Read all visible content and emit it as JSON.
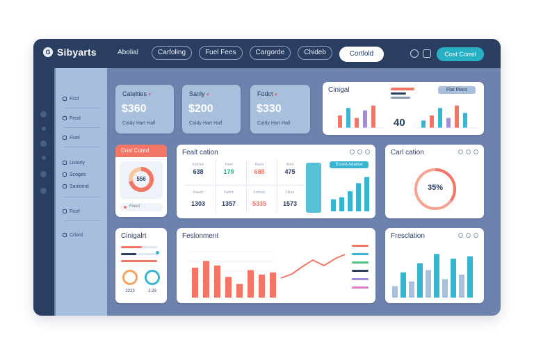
{
  "app": {
    "name": "Sibyarts",
    "logo_letter": "G"
  },
  "nav": {
    "items": [
      "Abolial",
      "Carfoling",
      "Fuel Fees",
      "Cargorde",
      "Chideb"
    ]
  },
  "header": {
    "cta_label": "Cortlold",
    "accent_label": "Cost Correl"
  },
  "sidebar": {
    "items": [
      {
        "label": "Ficd",
        "icon": "gauge-icon"
      },
      {
        "label": "Feod",
        "icon": "list-icon"
      },
      {
        "label": "Ficel",
        "icon": "box-icon"
      },
      {
        "label": "Lictorly",
        "icon": "file-icon"
      },
      {
        "label": "Scoges",
        "icon": "chart-icon"
      },
      {
        "label": "Sanlomd",
        "icon": "folder-icon"
      },
      {
        "label": "Ficel",
        "icon": "box-icon"
      },
      {
        "label": "Crlord",
        "icon": "settings-icon"
      }
    ]
  },
  "stats": [
    {
      "title": "Catelties",
      "value": "$360",
      "sub": "Caldy Hart Hall"
    },
    {
      "title": "Sanly",
      "value": "$200",
      "sub": "Caldy Hart Hall"
    },
    {
      "title": "Fodct",
      "value": "$330",
      "sub": "Caldy Hart Hall"
    }
  ],
  "chart_top": {
    "title": "Cinigal",
    "badge": "Flat Mass",
    "big_number": "40",
    "levels": [
      0.5,
      0.8,
      0.4,
      0.7,
      0.9,
      0.3,
      0.5,
      0.8,
      0.4,
      0.9,
      0.6
    ]
  },
  "donut_card": {
    "title": "Cost Conrd",
    "value": "556",
    "percent": 72,
    "foot": "Fleed"
  },
  "table_card": {
    "title": "Fealt cation",
    "row1": [
      {
        "value": "638",
        "label": "Fenrice"
      },
      {
        "value": "179",
        "label": "Foml"
      },
      {
        "value": "688",
        "label": "Rond"
      },
      {
        "value": "475",
        "label": "Boht"
      }
    ],
    "row2": [
      {
        "value": "1303",
        "label": "Fleedc"
      },
      {
        "value": "1357",
        "label": "Fanrd"
      },
      {
        "value": "5335",
        "label": "Fomelc"
      },
      {
        "value": "1573",
        "label": "Fllore"
      }
    ],
    "side_label": "Enrost Adance",
    "bar_levels": [
      0.3,
      0.35,
      0.5,
      0.7,
      0.85
    ]
  },
  "gauge_card": {
    "title": "Carl cation",
    "value": "35%",
    "percent": 35
  },
  "left_small": {
    "title": "Cinigalrt",
    "foot_a": "2223",
    "foot_b": "2.23"
  },
  "reg_card": {
    "title": "Feslonment",
    "levels": [
      0.65,
      0.8,
      0.7,
      0.45,
      0.3,
      0.6,
      0.5,
      0.55
    ]
  },
  "pres_card": {
    "title": "Fresclation",
    "levels": [
      0.25,
      0.55,
      0.35,
      0.75,
      0.6,
      0.95,
      0.4,
      0.85,
      0.5,
      0.9
    ]
  },
  "colors": {
    "coral": "#f27565",
    "teal": "#37b5d1",
    "purple": "#a68bd6",
    "navy": "#2a3e62"
  }
}
